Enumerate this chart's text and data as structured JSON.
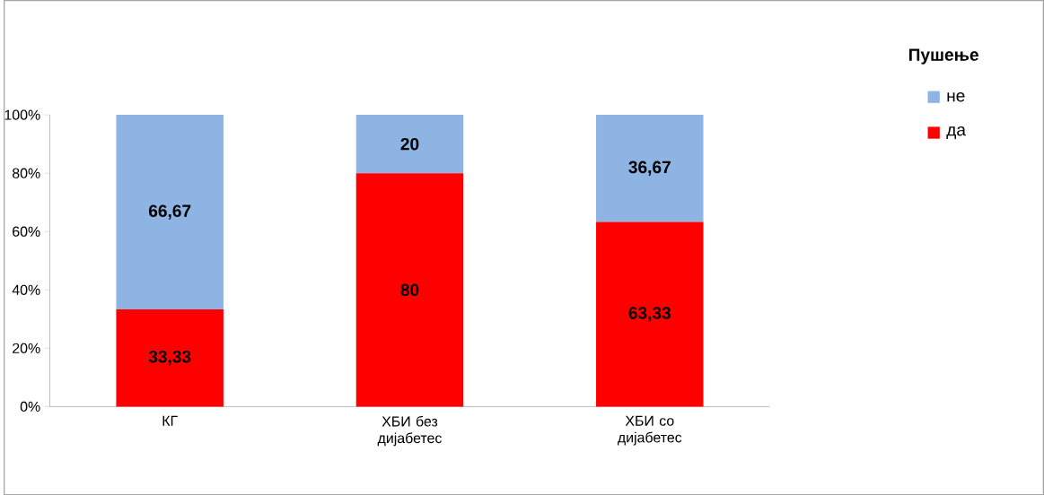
{
  "chart_data": {
    "type": "bar",
    "stacked": true,
    "legend_title": "Пушење",
    "legend": "right",
    "categories": [
      "КГ",
      "ХБИ без дијабетес",
      "ХБИ со дијабетес"
    ],
    "ylim": [
      0,
      100
    ],
    "yticks": [
      {
        "value": 0,
        "label": "0%"
      },
      {
        "value": 20,
        "label": "20%"
      },
      {
        "value": 40,
        "label": "40%"
      },
      {
        "value": 60,
        "label": "60%"
      },
      {
        "value": 80,
        "label": "80%"
      },
      {
        "value": 100,
        "label": "100%"
      }
    ],
    "series": [
      {
        "name": "да",
        "color": "#ff0000",
        "values": [
          33.33,
          80,
          63.33
        ],
        "value_labels": [
          "33,33",
          "80",
          "63,33"
        ]
      },
      {
        "name": "не",
        "color": "#8db4e2",
        "values": [
          66.67,
          20,
          36.67
        ],
        "value_labels": [
          "66,67",
          "20",
          "36,67"
        ]
      }
    ]
  }
}
